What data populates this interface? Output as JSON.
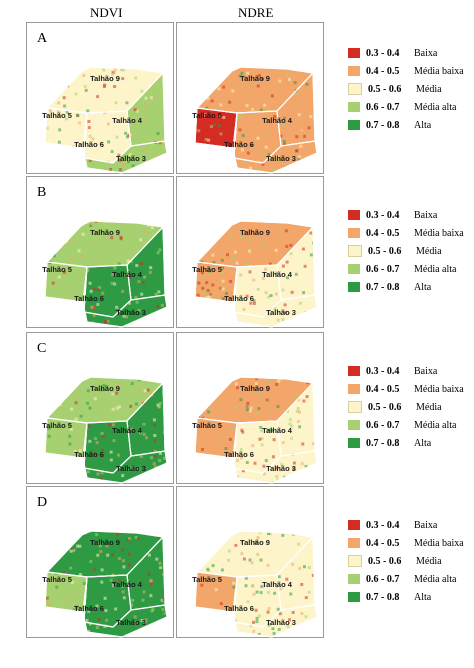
{
  "headers": {
    "ndvi": "NDVI",
    "ndre": "NDRE"
  },
  "colors": {
    "baixa": "#d42b23",
    "media_baixa": "#f2a66a",
    "media": "#fdf5c9",
    "media_alta": "#a7d170",
    "alta": "#2e9a44"
  },
  "plot_labels": [
    "Talhão 9",
    "Talhão 5",
    "Talhão 4",
    "Talhão 6",
    "Talhão 3"
  ],
  "rows": [
    {
      "letter": "A",
      "ndvi": {
        "t9": "media",
        "t5": "media",
        "t4": "media_alta",
        "t6": "media",
        "t3": "media_alta"
      },
      "ndre": {
        "t9": "media_baixa",
        "t5": "baixa",
        "t4": "media_baixa",
        "t6": "media_baixa",
        "t3": "media_baixa"
      }
    },
    {
      "letter": "B",
      "ndvi": {
        "t9": "media_alta",
        "t5": "media_alta",
        "t4": "alta",
        "t6": "alta",
        "t3": "alta"
      },
      "ndre": {
        "t9": "media_baixa",
        "t5": "media_baixa",
        "t4": "media",
        "t6": "media",
        "t3": "media"
      }
    },
    {
      "letter": "C",
      "ndvi": {
        "t9": "media_alta",
        "t5": "media_alta",
        "t4": "alta",
        "t6": "alta",
        "t3": "alta"
      },
      "ndre": {
        "t9": "media_baixa",
        "t5": "media_baixa",
        "t4": "media",
        "t6": "media",
        "t3": "media"
      }
    },
    {
      "letter": "D",
      "ndvi": {
        "t9": "alta",
        "t5": "media_alta",
        "t4": "alta",
        "t6": "alta",
        "t3": "alta"
      },
      "ndre": {
        "t9": "media",
        "t5": "media_baixa",
        "t4": "media",
        "t6": "media",
        "t3": "media"
      }
    }
  ],
  "legend": [
    {
      "range": "0.3 - 0.4",
      "label": "Baixa",
      "color": "#d42b23"
    },
    {
      "range": "0.4 - 0.5",
      "label": "Média baixa",
      "color": "#f2a66a"
    },
    {
      "range": "0.5 - 0.6",
      "label": "Média",
      "color": "#fdf5c9"
    },
    {
      "range": "0.6 - 0.7",
      "label": "Média alta",
      "color": "#a7d170"
    },
    {
      "range": "0.7 - 0.8",
      "label": "Alta",
      "color": "#2e9a44"
    }
  ]
}
